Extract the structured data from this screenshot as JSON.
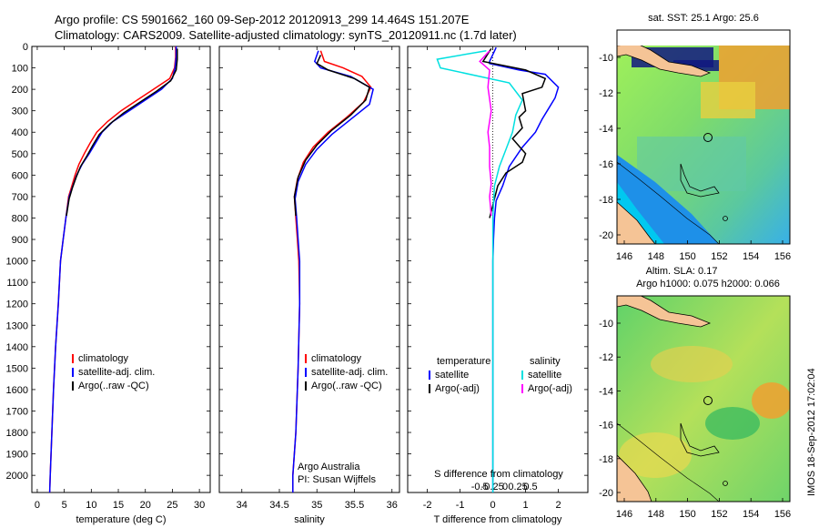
{
  "header": {
    "title_line1": "Argo profile: CS 5901662_160 09-Sep-2012 20120913_299 14.464S 151.207E",
    "title_line2": "Climatology: CARS2009. Satellite-adjusted climatology: synTS_20120911.nc (1.7d later)"
  },
  "footer": {
    "stamp": "IMOS 18-Sep-2012 17:02:04"
  },
  "colors": {
    "climatology": "#ff0000",
    "satellite": "#0000ff",
    "argo": "#000000",
    "argo_adj_salinity": "#ff00ff",
    "satellite_salinity": "#00e0e0",
    "land": "#f5c496"
  },
  "chart_data": [
    {
      "type": "line",
      "id": "temperature",
      "xlabel": "temperature (deg C)",
      "ylabel": "",
      "xlim": [
        -1,
        32
      ],
      "ylim": [
        2080,
        0
      ],
      "xticks": [
        0,
        5,
        10,
        15,
        20,
        25,
        30
      ],
      "yticks": [
        0,
        100,
        200,
        300,
        400,
        500,
        600,
        700,
        800,
        900,
        1000,
        1100,
        1200,
        1300,
        1400,
        1500,
        1600,
        1700,
        1800,
        1900,
        2000
      ],
      "legend": [
        "climatology",
        "satellite-adj. clim.",
        "Argo(..raw -QC)"
      ],
      "series": [
        {
          "name": "climatology",
          "color": "#ff0000",
          "points": [
            [
              25.6,
              0
            ],
            [
              25.6,
              50
            ],
            [
              25.4,
              100
            ],
            [
              24.5,
              150
            ],
            [
              21.5,
              200
            ],
            [
              18.5,
              250
            ],
            [
              15.5,
              300
            ],
            [
              13,
              350
            ],
            [
              11,
              400
            ],
            [
              9.8,
              450
            ],
            [
              8.7,
              500
            ],
            [
              7.7,
              550
            ],
            [
              7,
              600
            ],
            [
              6.4,
              650
            ],
            [
              5.8,
              700
            ],
            [
              5.3,
              800
            ],
            [
              4.8,
              900
            ],
            [
              4.3,
              1000
            ],
            [
              3.9,
              1200
            ],
            [
              3.4,
              1400
            ],
            [
              3.0,
              1600
            ],
            [
              2.7,
              1800
            ],
            [
              2.4,
              2000
            ],
            [
              2.3,
              2080
            ]
          ]
        },
        {
          "name": "satellite-adj. clim.",
          "color": "#0000ff",
          "points": [
            [
              25.7,
              0
            ],
            [
              25.7,
              50
            ],
            [
              25.5,
              100
            ],
            [
              25,
              150
            ],
            [
              23,
              200
            ],
            [
              20,
              250
            ],
            [
              17,
              300
            ],
            [
              14,
              350
            ],
            [
              12,
              400
            ],
            [
              10.8,
              450
            ],
            [
              9.6,
              500
            ],
            [
              8.3,
              550
            ],
            [
              7.3,
              600
            ],
            [
              6.6,
              650
            ],
            [
              5.9,
              700
            ],
            [
              5.3,
              800
            ],
            [
              4.8,
              900
            ],
            [
              4.3,
              1000
            ],
            [
              3.9,
              1200
            ],
            [
              3.4,
              1400
            ],
            [
              3.0,
              1600
            ],
            [
              2.7,
              1800
            ],
            [
              2.4,
              2000
            ],
            [
              2.3,
              2080
            ]
          ]
        },
        {
          "name": "Argo(..raw -QC)",
          "color": "#000000",
          "points": [
            [
              25.9,
              10
            ],
            [
              25.9,
              60
            ],
            [
              25.7,
              110
            ],
            [
              24.7,
              160
            ],
            [
              22,
              210
            ],
            [
              19,
              260
            ],
            [
              16,
              310
            ],
            [
              13.5,
              360
            ],
            [
              11.5,
              410
            ],
            [
              10.3,
              460
            ],
            [
              9.2,
              510
            ],
            [
              8,
              560
            ],
            [
              7.2,
              610
            ],
            [
              6.5,
              660
            ],
            [
              5.9,
              710
            ],
            [
              5.4,
              790
            ]
          ]
        }
      ]
    },
    {
      "type": "line",
      "id": "salinity",
      "xlabel": "salinity",
      "ylabel": "",
      "xlim": [
        33.7,
        36.1
      ],
      "ylim": [
        2080,
        0
      ],
      "xticks": [
        34,
        34.5,
        35,
        35.5,
        36
      ],
      "yticks": [
        0,
        100,
        200,
        300,
        400,
        500,
        600,
        700,
        800,
        900,
        1000,
        1100,
        1200,
        1300,
        1400,
        1500,
        1600,
        1700,
        1800,
        1900,
        2000
      ],
      "legend": [
        "climatology",
        "satellite-adj. clim.",
        "Argo(..raw -QC)"
      ],
      "annotation": [
        "Argo Australia",
        "PI: Susan Wijffels"
      ],
      "series": [
        {
          "name": "climatology",
          "color": "#ff0000",
          "points": [
            [
              35.05,
              20
            ],
            [
              35.1,
              70
            ],
            [
              35.35,
              100
            ],
            [
              35.6,
              140
            ],
            [
              35.72,
              190
            ],
            [
              35.62,
              260
            ],
            [
              35.4,
              330
            ],
            [
              35.15,
              400
            ],
            [
              34.95,
              470
            ],
            [
              34.82,
              540
            ],
            [
              34.74,
              620
            ],
            [
              34.7,
              700
            ],
            [
              34.72,
              800
            ],
            [
              34.74,
              900
            ],
            [
              34.76,
              1000
            ],
            [
              34.77,
              1200
            ],
            [
              34.75,
              1500
            ],
            [
              34.72,
              1800
            ],
            [
              34.68,
              2000
            ],
            [
              34.68,
              2080
            ]
          ]
        },
        {
          "name": "satellite-adj. clim.",
          "color": "#0000ff",
          "points": [
            [
              35.02,
              20
            ],
            [
              34.97,
              70
            ],
            [
              35.05,
              100
            ],
            [
              35.45,
              140
            ],
            [
              35.75,
              200
            ],
            [
              35.7,
              270
            ],
            [
              35.45,
              340
            ],
            [
              35.2,
              410
            ],
            [
              35.0,
              480
            ],
            [
              34.85,
              550
            ],
            [
              34.75,
              630
            ],
            [
              34.71,
              710
            ],
            [
              34.73,
              800
            ],
            [
              34.75,
              900
            ],
            [
              34.77,
              1000
            ],
            [
              34.77,
              1200
            ],
            [
              34.75,
              1500
            ],
            [
              34.72,
              1800
            ],
            [
              34.68,
              2000
            ],
            [
              34.68,
              2080
            ]
          ]
        },
        {
          "name": "Argo(..raw -QC)",
          "color": "#000000",
          "points": [
            [
              35.05,
              40
            ],
            [
              35.0,
              80
            ],
            [
              35.15,
              110
            ],
            [
              35.5,
              150
            ],
            [
              35.7,
              190
            ],
            [
              35.65,
              250
            ],
            [
              35.45,
              320
            ],
            [
              35.2,
              390
            ],
            [
              35.0,
              460
            ],
            [
              34.85,
              530
            ],
            [
              34.75,
              610
            ],
            [
              34.7,
              700
            ],
            [
              34.72,
              790
            ]
          ]
        }
      ]
    },
    {
      "type": "line",
      "id": "difference",
      "xlabel": "T difference from climatology",
      "xlabel_top": "S difference from climatology",
      "xlim": [
        -2.6,
        2.9
      ],
      "ylim": [
        2080,
        0
      ],
      "xticks": [
        -2,
        -1,
        0,
        1,
        2
      ],
      "s_ticks": [
        -0.5,
        -0.25,
        0,
        0.25,
        0.5
      ],
      "s_tick_labels": [
        "-0.5",
        "-0.25",
        "0",
        "0.25",
        "0.5"
      ],
      "yticks": [
        0,
        100,
        200,
        300,
        400,
        500,
        600,
        700,
        800,
        900,
        1000,
        1100,
        1200,
        1300,
        1400,
        1500,
        1600,
        1700,
        1800,
        1900,
        2000
      ],
      "legend": {
        "temperature": "temperature",
        "salinity": "salinity",
        "items": [
          "satellite",
          "Argo(-adj)",
          "satellite",
          "Argo(-adj)"
        ]
      },
      "series": [
        {
          "name": "satellite (T)",
          "color": "#0000ff",
          "points": [
            [
              0.1,
              5
            ],
            [
              -0.1,
              70
            ],
            [
              -0.1,
              80
            ],
            [
              0.8,
              110
            ],
            [
              1.6,
              130
            ],
            [
              2.0,
              190
            ],
            [
              1.9,
              240
            ],
            [
              1.7,
              290
            ],
            [
              1.5,
              340
            ],
            [
              1.3,
              400
            ],
            [
              0.9,
              470
            ],
            [
              0.5,
              560
            ],
            [
              0.3,
              650
            ],
            [
              0.1,
              720
            ],
            [
              0.05,
              800
            ],
            [
              0.02,
              900
            ],
            [
              0.0,
              1000
            ],
            [
              0.0,
              1500
            ],
            [
              0.0,
              2080
            ]
          ]
        },
        {
          "name": "Argo(-adj) (T)",
          "color": "#000000",
          "points": [
            [
              -0.05,
              10
            ],
            [
              -0.3,
              70
            ],
            [
              1.0,
              110
            ],
            [
              1.6,
              150
            ],
            [
              1.5,
              190
            ],
            [
              0.9,
              220
            ],
            [
              1.0,
              300
            ],
            [
              0.8,
              330
            ],
            [
              0.9,
              380
            ],
            [
              0.6,
              430
            ],
            [
              1.0,
              500
            ],
            [
              0.9,
              540
            ],
            [
              0.4,
              590
            ],
            [
              0.15,
              650
            ],
            [
              -0.1,
              800
            ]
          ]
        },
        {
          "name": "satellite (S)",
          "color": "#00e0e0",
          "points": [
            [
              -0.2,
              20
            ],
            [
              -1.7,
              60
            ],
            [
              -1.6,
              100
            ],
            [
              0.5,
              170
            ],
            [
              0.9,
              250
            ],
            [
              0.7,
              320
            ],
            [
              0.6,
              400
            ],
            [
              0.4,
              480
            ],
            [
              0.2,
              560
            ],
            [
              0.05,
              650
            ],
            [
              0.0,
              800
            ],
            [
              0.0,
              1000
            ],
            [
              0.0,
              1500
            ],
            [
              0.0,
              2080
            ]
          ]
        },
        {
          "name": "Argo(-adj) (S)",
          "color": "#ff00ff",
          "points": [
            [
              -0.1,
              20
            ],
            [
              -0.4,
              70
            ],
            [
              -0.1,
              110
            ],
            [
              -0.15,
              190
            ],
            [
              -0.05,
              300
            ],
            [
              -0.15,
              400
            ],
            [
              -0.1,
              470
            ],
            [
              -0.1,
              560
            ],
            [
              -0.05,
              640
            ],
            [
              -0.1,
              700
            ],
            [
              -0.05,
              790
            ]
          ]
        }
      ]
    }
  ],
  "maps": [
    {
      "id": "sst-map",
      "title": "sat. SST: 25.1  Argo: 25.6",
      "xticks": [
        "146",
        "148",
        "150",
        "152",
        "154",
        "156"
      ],
      "yticks": [
        "-10",
        "-12",
        "-14",
        "-16",
        "-18",
        "-20"
      ]
    },
    {
      "id": "sla-map",
      "title_line1": "Altim. SLA: 0.17",
      "title_line2": "Argo h1000: 0.075 h2000: 0.066",
      "xticks": [
        "146",
        "148",
        "150",
        "152",
        "154",
        "156"
      ],
      "yticks": [
        "-10",
        "-12",
        "-14",
        "-16",
        "-18",
        "-20"
      ]
    }
  ]
}
